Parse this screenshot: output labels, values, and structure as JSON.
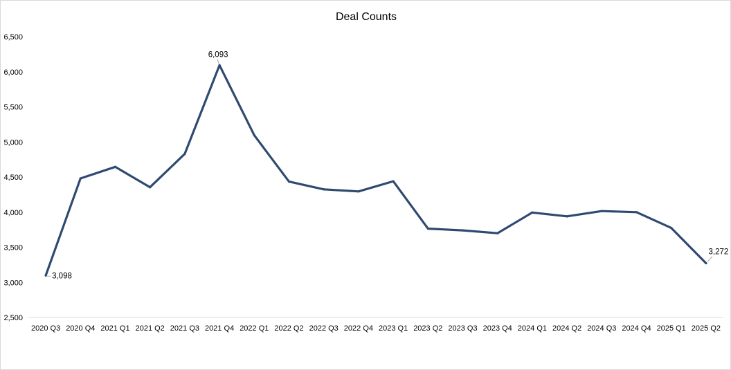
{
  "chart_data": {
    "type": "line",
    "title": "Deal Counts",
    "xlabel": "",
    "ylabel": "",
    "categories": [
      "2020 Q3",
      "2020 Q4",
      "2021 Q1",
      "2021 Q2",
      "2021 Q3",
      "2021 Q4",
      "2022 Q1",
      "2022 Q2",
      "2022 Q3",
      "2022 Q4",
      "2023 Q1",
      "2023 Q2",
      "2023 Q3",
      "2023 Q4",
      "2024 Q1",
      "2024 Q2",
      "2024 Q3",
      "2024 Q4",
      "2025 Q1",
      "2025 Q2"
    ],
    "series": [
      {
        "values": [
          3098,
          4480,
          4645,
          4355,
          4830,
          6093,
          5095,
          4435,
          4325,
          4295,
          4440,
          3765,
          3740,
          3700,
          3995,
          3940,
          4015,
          4000,
          3775,
          3272
        ],
        "color": "#2f4a70"
      }
    ],
    "ylim": [
      2500,
      6500
    ],
    "yticks": [
      2500,
      3000,
      3500,
      4000,
      4500,
      5000,
      5500,
      6000,
      6500
    ],
    "ytick_labels": [
      "2,500",
      "3,000",
      "3,500",
      "4,000",
      "4,500",
      "5,000",
      "5,500",
      "6,000",
      "6,500"
    ],
    "data_labels": [
      {
        "index": 0,
        "text": "3,098",
        "placement": "below-right"
      },
      {
        "index": 5,
        "text": "6,093",
        "placement": "above"
      },
      {
        "index": 19,
        "text": "3,272",
        "placement": "above-right"
      }
    ],
    "grid": false,
    "legend": "none"
  }
}
